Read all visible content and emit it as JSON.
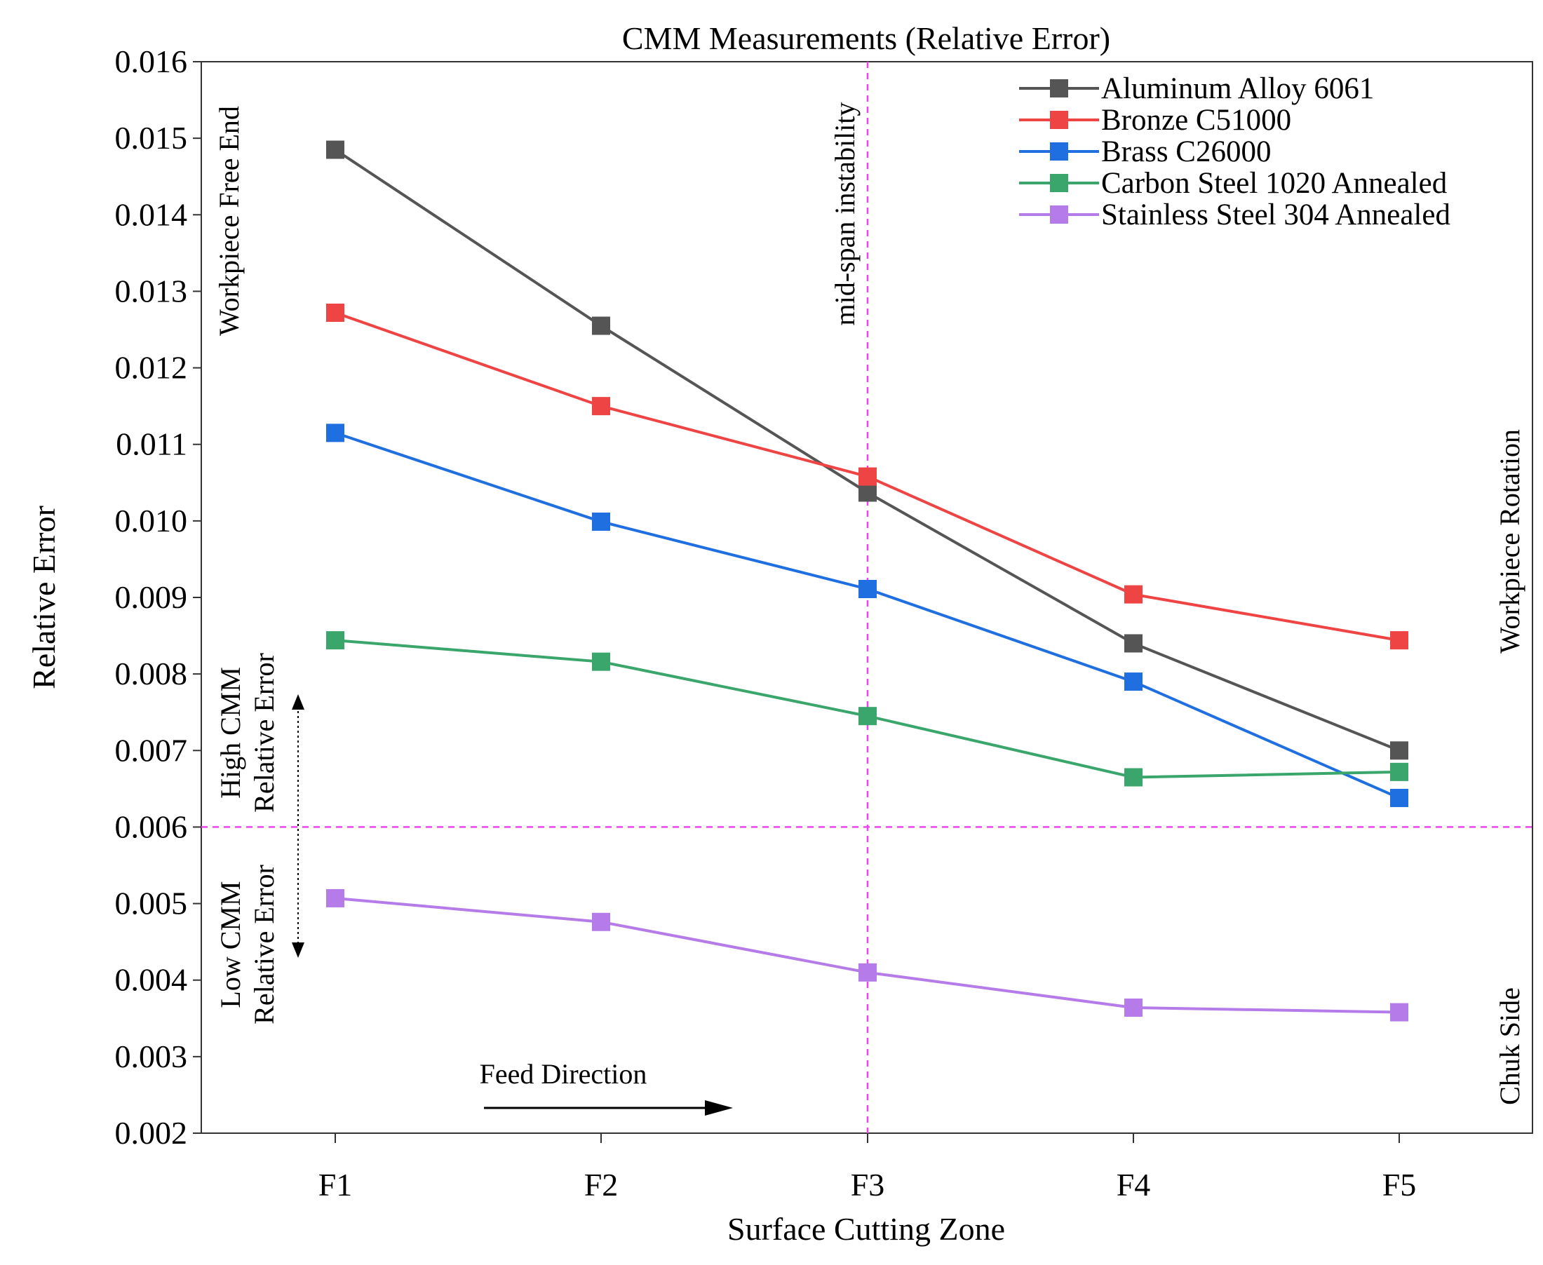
{
  "chart_data": {
    "type": "line",
    "title": "CMM Measurements (Relative Error)",
    "xlabel": "Surface Cutting Zone",
    "ylabel": "Relative Error",
    "categories": [
      "F1",
      "F2",
      "F3",
      "F4",
      "F5"
    ],
    "ylim": [
      0.002,
      0.016
    ],
    "yticks": [
      0.002,
      0.003,
      0.004,
      0.005,
      0.006,
      0.007,
      0.008,
      0.009,
      0.01,
      0.011,
      0.012,
      0.013,
      0.014,
      0.015,
      0.016
    ],
    "ytick_labels": [
      "0.002",
      "0.003",
      "0.004",
      "0.005",
      "0.006",
      "0.007",
      "0.008",
      "0.009",
      "0.010",
      "0.011",
      "0.012",
      "0.013",
      "0.014",
      "0.015",
      "0.016"
    ],
    "grid": false,
    "legend_position": "top-right",
    "series": [
      {
        "name": "Aluminum Alloy 6061",
        "color": "#555555",
        "values": [
          0.01485,
          0.01255,
          0.01037,
          0.0084,
          0.007
        ]
      },
      {
        "name": "Bronze C51000",
        "color": "#ef4444",
        "values": [
          0.01272,
          0.0115,
          0.01058,
          0.00904,
          0.00844
        ]
      },
      {
        "name": "Brass C26000",
        "color": "#1f6fe0",
        "values": [
          0.01115,
          0.00999,
          0.00911,
          0.0079,
          0.00638
        ]
      },
      {
        "name": "Carbon Steel 1020 Annealed",
        "color": "#3aa66b",
        "values": [
          0.00844,
          0.00816,
          0.00745,
          0.00665,
          0.00672
        ]
      },
      {
        "name": "Stainless Steel 304 Annealed",
        "color": "#b57be8",
        "values": [
          0.00507,
          0.00476,
          0.0041,
          0.00364,
          0.00358
        ]
      }
    ],
    "reference_lines": {
      "horizontal_value": 0.006,
      "vertical_category": "F3",
      "color": "#ee44ee"
    },
    "annotations": {
      "mid_span": "mid-span instability",
      "free_end": "Workpiece Free End",
      "rotation": "Workpiece Rotation",
      "chuck_side": "Chuk Side",
      "high_line1": "High CMM",
      "high_line2": "Relative Error",
      "low_line1": "Low CMM",
      "low_line2": "Relative Error",
      "feed": "Feed Direction"
    }
  }
}
